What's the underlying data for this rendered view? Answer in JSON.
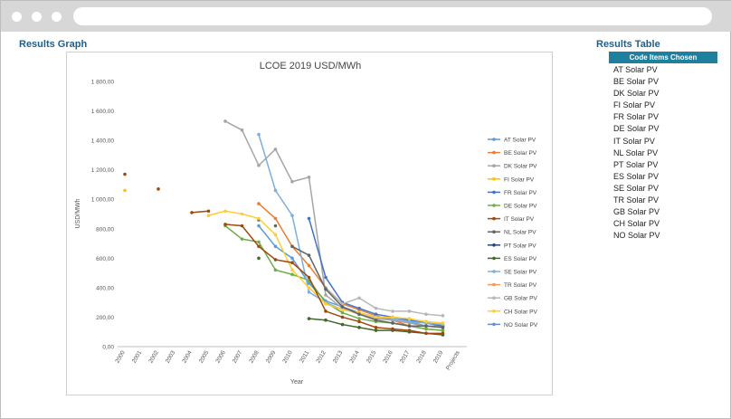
{
  "headings": {
    "results_graph": "Results Graph",
    "results_table": "Results Table"
  },
  "table": {
    "header": "Code Items Chosen",
    "rows": [
      "AT Solar PV",
      "BE Solar PV",
      "DK Solar PV",
      "FI Solar PV",
      "FR Solar PV",
      "DE Solar PV",
      "IT Solar PV",
      "NL Solar PV",
      "PT Solar PV",
      "ES Solar PV",
      "SE Solar PV",
      "TR Solar PV",
      "GB Solar PV",
      "CH Solar PV",
      "NO Solar PV"
    ]
  },
  "chart_data": {
    "type": "line",
    "title": "LCOE 2019 USD/MWh",
    "xlabel": "Year",
    "ylabel": "USD/MWh",
    "categories": [
      "2000",
      "2001",
      "2002",
      "2003",
      "2004",
      "2005",
      "2006",
      "2007",
      "2008",
      "2009",
      "2010",
      "2011",
      "2012",
      "2013",
      "2014",
      "2015",
      "2016",
      "2017",
      "2018",
      "2019",
      "Projects"
    ],
    "yticks": [
      "0,00",
      "200,00",
      "400,00",
      "600,00",
      "800,00",
      "1 000,00",
      "1 200,00",
      "1 400,00",
      "1 600,00",
      "1 800,00"
    ],
    "ylim": [
      0,
      1800
    ],
    "grid": false,
    "legend_position": "right",
    "series": [
      {
        "name": "AT Solar PV",
        "color": "#5b9bd5",
        "values": [
          null,
          null,
          null,
          null,
          null,
          null,
          null,
          null,
          820,
          680,
          600,
          430,
          310,
          270,
          230,
          200,
          190,
          170,
          140,
          130,
          null
        ]
      },
      {
        "name": "BE Solar PV",
        "color": "#ed7d31",
        "values": [
          null,
          null,
          null,
          null,
          null,
          null,
          null,
          null,
          970,
          870,
          680,
          550,
          400,
          290,
          250,
          210,
          180,
          140,
          120,
          110,
          null
        ]
      },
      {
        "name": "DK Solar PV",
        "color": "#a5a5a5",
        "values": [
          null,
          null,
          null,
          null,
          null,
          null,
          1530,
          1470,
          1230,
          1340,
          1120,
          1150,
          350,
          260,
          220,
          190,
          180,
          160,
          140,
          140,
          null
        ]
      },
      {
        "name": "FI Solar PV",
        "color": "#ffc000",
        "values": [
          1060,
          null,
          null,
          null,
          null,
          890,
          null,
          null,
          null,
          null,
          null,
          null,
          null,
          null,
          null,
          null,
          null,
          null,
          null,
          null,
          null
        ]
      },
      {
        "name": "FR Solar PV",
        "color": "#4472c4",
        "values": [
          null,
          null,
          null,
          null,
          null,
          null,
          null,
          null,
          860,
          null,
          null,
          870,
          470,
          300,
          260,
          220,
          200,
          180,
          160,
          140,
          null
        ]
      },
      {
        "name": "DE Solar PV",
        "color": "#70ad47",
        "values": [
          null,
          null,
          null,
          null,
          null,
          null,
          820,
          730,
          710,
          520,
          490,
          450,
          300,
          230,
          190,
          170,
          160,
          140,
          120,
          110,
          null
        ]
      },
      {
        "name": "IT Solar PV",
        "color": "#9e480e",
        "values": [
          1170,
          null,
          1070,
          null,
          910,
          920,
          null,
          null,
          null,
          null,
          null,
          null,
          null,
          null,
          null,
          null,
          null,
          null,
          null,
          null,
          null
        ]
      },
      {
        "name": "NL Solar PV",
        "color": "#636363",
        "values": [
          null,
          null,
          null,
          null,
          null,
          null,
          null,
          null,
          null,
          820,
          null,
          null,
          null,
          null,
          null,
          null,
          null,
          null,
          null,
          null,
          null
        ]
      },
      {
        "name": "PT Solar PV",
        "color": "#264478",
        "values": [
          null,
          null,
          null,
          null,
          null,
          null,
          null,
          null,
          null,
          null,
          null,
          null,
          null,
          null,
          null,
          null,
          null,
          null,
          null,
          null,
          null
        ]
      },
      {
        "name": "ES Solar PV",
        "color": "#43682b",
        "values": [
          null,
          null,
          null,
          null,
          null,
          null,
          null,
          null,
          600,
          null,
          null,
          190,
          180,
          150,
          130,
          110,
          110,
          100,
          90,
          80,
          null
        ]
      },
      {
        "name": "SE Solar PV",
        "color": "#7cafdd",
        "values": [
          null,
          null,
          null,
          null,
          null,
          null,
          null,
          null,
          1440,
          1060,
          890,
          370,
          300,
          250,
          230,
          200,
          190,
          170,
          160,
          150,
          null
        ]
      },
      {
        "name": "TR Solar PV",
        "color": "#f1975a",
        "values": [
          null,
          null,
          null,
          null,
          null,
          null,
          null,
          null,
          null,
          null,
          null,
          null,
          null,
          null,
          null,
          null,
          null,
          null,
          null,
          null,
          null
        ]
      },
      {
        "name": "GB Solar PV",
        "color": "#b7b7b7",
        "values": [
          null,
          null,
          null,
          null,
          null,
          null,
          null,
          null,
          null,
          null,
          null,
          null,
          400,
          290,
          330,
          260,
          240,
          240,
          220,
          210,
          null
        ]
      },
      {
        "name": "CH Solar PV",
        "color": "#ffcd33",
        "values": [
          null,
          null,
          null,
          null,
          null,
          890,
          920,
          900,
          870,
          760,
          520,
          400,
          290,
          250,
          230,
          200,
          200,
          190,
          170,
          160,
          null
        ]
      },
      {
        "name": "NO Solar PV",
        "color": "#698ed0",
        "values": [
          null,
          null,
          null,
          null,
          null,
          null,
          null,
          null,
          null,
          null,
          null,
          null,
          null,
          null,
          null,
          null,
          null,
          null,
          null,
          null,
          null
        ]
      }
    ],
    "extra_series_paths": [
      {
        "name": "IT Solar PV",
        "color": "#9e480e",
        "values": [
          null,
          null,
          null,
          null,
          null,
          null,
          830,
          820,
          680,
          590,
          570,
          470,
          240,
          200,
          170,
          130,
          120,
          110,
          90,
          90,
          null
        ]
      },
      {
        "name": "NL Solar PV",
        "color": "#636363",
        "values": [
          null,
          null,
          null,
          null,
          null,
          null,
          null,
          null,
          null,
          null,
          680,
          620,
          390,
          270,
          220,
          180,
          160,
          140,
          140,
          130,
          null
        ]
      }
    ]
  }
}
